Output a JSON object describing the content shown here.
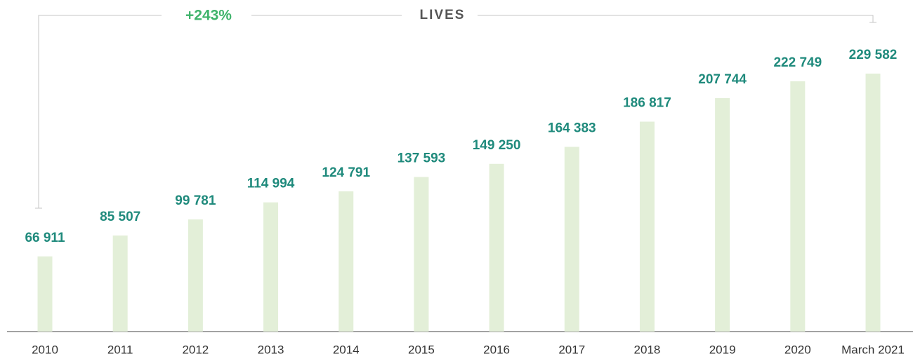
{
  "chart_data": {
    "type": "bar",
    "title": "LIVES",
    "annotations": [
      "+243%"
    ],
    "categories": [
      "2010",
      "2011",
      "2012",
      "2013",
      "2014",
      "2015",
      "2016",
      "2017",
      "2018",
      "2019",
      "2020",
      "March 2021"
    ],
    "values": [
      66911,
      85507,
      99781,
      114994,
      124791,
      137593,
      149250,
      164383,
      186817,
      207744,
      222749,
      229582
    ],
    "value_labels": [
      "66 911",
      "85 507",
      "99 781",
      "114 994",
      "124 791",
      "137 593",
      "149 250",
      "164 383",
      "186 817",
      "207 744",
      "222 749",
      "229 582"
    ],
    "color": "#e3efd8"
  }
}
